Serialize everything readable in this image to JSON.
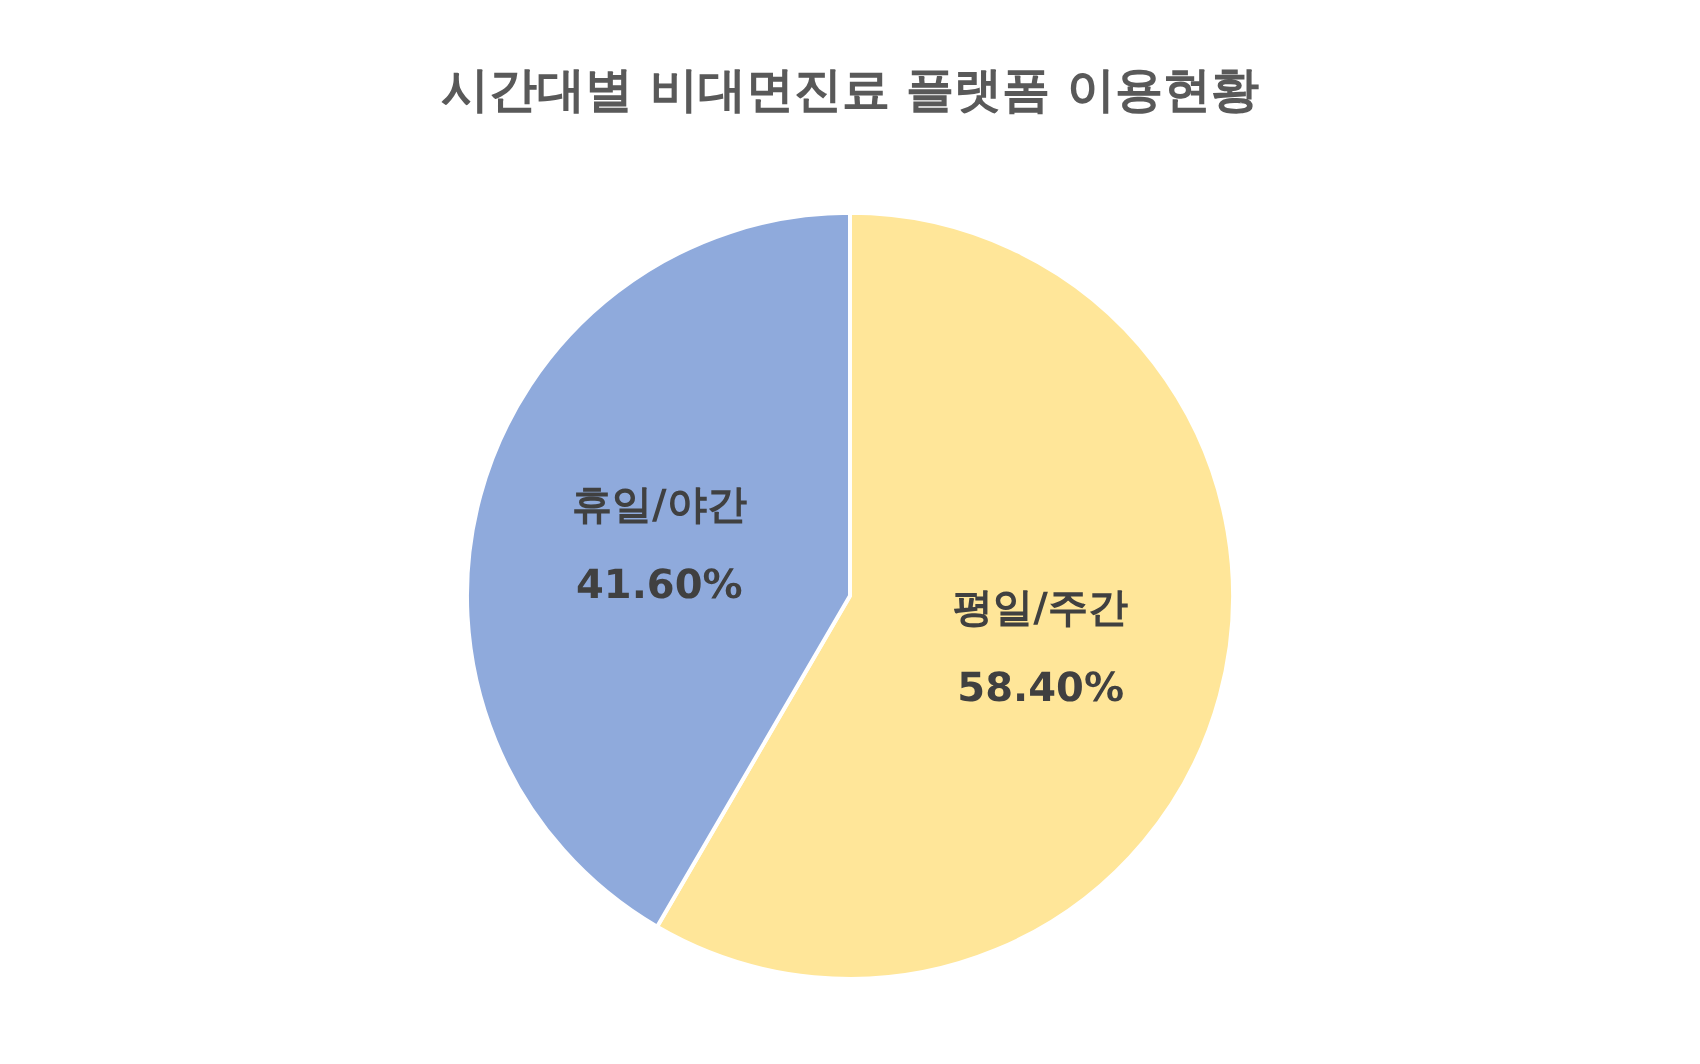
{
  "chart_data": {
    "type": "pie",
    "title": "시간대별 비대면진료 플랫폼 이용현황",
    "categories": [
      "평일/주간",
      "휴일/야간"
    ],
    "values": [
      58.4,
      41.6
    ],
    "colors": [
      "#ffe699",
      "#8faadc"
    ],
    "value_labels": [
      "58.40%",
      "41.60%"
    ],
    "legend": false
  }
}
